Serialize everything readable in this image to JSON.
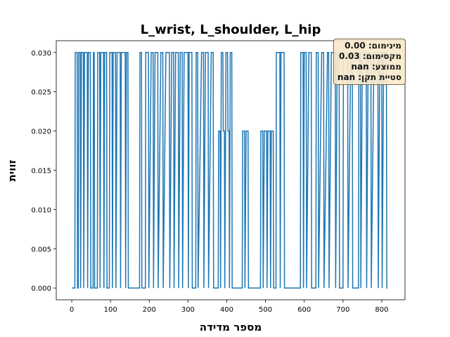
{
  "chart_data": {
    "type": "line",
    "title": "L_wrist, L_shoulder, L_hip",
    "x_label": "מספר מדידה",
    "y_label": "זווית",
    "annotations": [
      "מינימום: 0.00",
      "מקסימום: 0.03",
      "ממוצע: nan",
      "סטיית תקן: nan"
    ],
    "xlim": [
      -40,
      860
    ],
    "ylim": [
      -0.0015,
      0.0315
    ],
    "xticks": [
      0,
      100,
      200,
      300,
      400,
      500,
      600,
      700,
      800
    ],
    "yticks": [
      {
        "value": 0,
        "label": "0.000"
      },
      {
        "value": 0.005,
        "label": "0.005"
      },
      {
        "value": 0.01,
        "label": "0.010"
      },
      {
        "value": 0.015,
        "label": "0.015"
      },
      {
        "value": 0.02,
        "label": "0.020"
      },
      {
        "value": 0.025,
        "label": "0.025"
      },
      {
        "value": 0.03,
        "label": "0.030"
      }
    ],
    "grid": false,
    "color": "#1f77b4",
    "x": [
      0,
      8,
      9,
      14,
      15,
      17,
      18,
      22,
      23,
      25,
      30,
      31,
      33,
      40,
      41,
      43,
      48,
      49,
      55,
      56,
      58,
      59,
      66,
      67,
      72,
      73,
      75,
      82,
      83,
      85,
      90,
      91,
      97,
      98,
      104,
      105,
      107,
      113,
      114,
      117,
      125,
      126,
      128,
      138,
      139,
      141,
      145,
      146,
      175,
      176,
      180,
      181,
      190,
      191,
      198,
      199,
      205,
      210,
      211,
      215,
      222,
      223,
      230,
      235,
      236,
      243,
      252,
      253,
      258,
      263,
      264,
      268,
      275,
      276,
      280,
      285,
      286,
      290,
      300,
      301,
      303,
      310,
      311,
      320,
      321,
      325,
      326,
      335,
      340,
      341,
      345,
      352,
      353,
      360,
      365,
      366,
      378,
      379,
      383,
      384,
      386,
      390,
      391,
      394,
      395,
      398,
      402,
      403,
      406,
      407,
      409,
      413,
      414,
      440,
      441,
      446,
      447,
      450,
      455,
      456,
      487,
      488,
      493,
      494,
      497,
      503,
      504,
      506,
      512,
      513,
      515,
      520,
      521,
      527,
      528,
      537,
      538,
      540,
      548,
      549,
      590,
      591,
      597,
      598,
      600,
      605,
      606,
      612,
      618,
      619,
      630,
      631,
      636,
      637,
      645,
      650,
      651,
      660,
      663,
      664,
      670,
      680,
      681,
      685,
      690,
      691,
      700,
      701,
      712,
      713,
      720,
      724,
      725,
      740,
      741,
      745,
      746,
      750,
      760,
      761,
      765,
      772,
      773,
      780,
      790,
      791,
      795,
      800,
      801,
      805,
      812,
      813,
      815
    ],
    "values": [
      0,
      0,
      0.03,
      0.03,
      0,
      0,
      0.03,
      0.03,
      0,
      0.03,
      0.03,
      0,
      0.03,
      0.03,
      0,
      0.03,
      0.03,
      0,
      0,
      0.03,
      0.03,
      0,
      0,
      0.03,
      0.03,
      0,
      0.03,
      0.03,
      0,
      0.03,
      0.03,
      0,
      0,
      0.03,
      0.03,
      0,
      0.03,
      0.03,
      0,
      0.03,
      0.03,
      0,
      0.03,
      0.03,
      0,
      0.03,
      0.03,
      0,
      0,
      0.03,
      0.03,
      0,
      0,
      0.03,
      0.03,
      0,
      0.03,
      0.03,
      0,
      0.03,
      0.03,
      0,
      0.03,
      0.03,
      0,
      0.03,
      0.03,
      0,
      0.03,
      0.03,
      0,
      0.03,
      0.03,
      0,
      0.03,
      0.03,
      0,
      0.03,
      0.03,
      0,
      0.03,
      0.03,
      0,
      0,
      0.03,
      0.03,
      0,
      0.03,
      0.03,
      0,
      0.03,
      0.03,
      0,
      0.03,
      0.03,
      0,
      0,
      0.02,
      0.02,
      0,
      0.03,
      0.03,
      0.02,
      0.02,
      0,
      0.03,
      0.03,
      0.02,
      0.02,
      0,
      0.03,
      0.03,
      0,
      0,
      0.02,
      0.02,
      0,
      0.02,
      0.02,
      0,
      0,
      0.02,
      0.02,
      0,
      0.02,
      0.02,
      0,
      0.02,
      0.02,
      0,
      0.02,
      0.02,
      0,
      0,
      0.03,
      0.03,
      0,
      0.03,
      0.03,
      0,
      0,
      0.03,
      0.03,
      0,
      0.03,
      0.03,
      0,
      0.03,
      0.03,
      0,
      0,
      0.03,
      0.03,
      0,
      0.03,
      0.03,
      0,
      0.03,
      0.03,
      0,
      0.03,
      0.03,
      0,
      0.03,
      0.03,
      0,
      0,
      0.03,
      0.03,
      0,
      0.03,
      0.03,
      0,
      0,
      0.03,
      0.03,
      0,
      0.03,
      0.03,
      0,
      0.03,
      0.03,
      0,
      0.03,
      0.03,
      0,
      0.03,
      0.03,
      0,
      0.03,
      0.03,
      0,
      0
    ]
  }
}
